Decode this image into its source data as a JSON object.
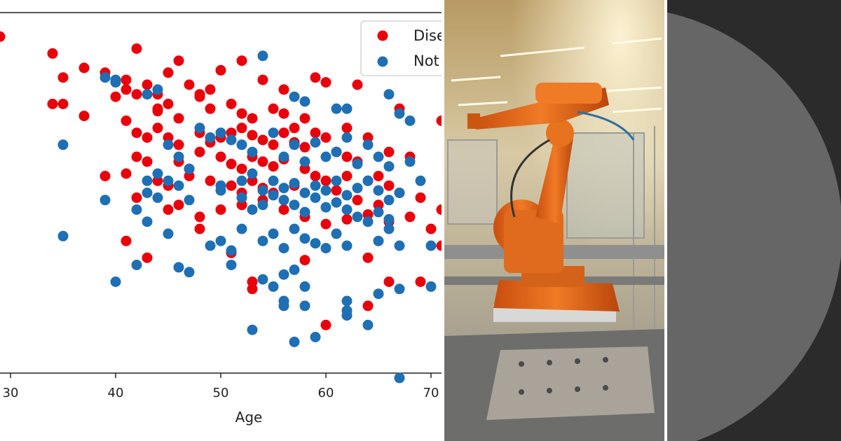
{
  "chart_data": {
    "type": "scatter",
    "xlabel": "Age",
    "ylabel": "",
    "xlim": [
      29,
      71
    ],
    "ylim": [
      60,
      210
    ],
    "x_ticks": [
      "30",
      "40",
      "50",
      "60",
      "70"
    ],
    "legend": {
      "placement": "top-right",
      "entries": [
        "Disease",
        "Not Disease"
      ]
    },
    "series": [
      {
        "name": "Disease",
        "color": "#e8000b",
        "points": [
          [
            29,
            200
          ],
          [
            34,
            193
          ],
          [
            42,
            195
          ],
          [
            35,
            183
          ],
          [
            37,
            187
          ],
          [
            39,
            185
          ],
          [
            41,
            182
          ],
          [
            43,
            180
          ],
          [
            44,
            176
          ],
          [
            45,
            185
          ],
          [
            46,
            190
          ],
          [
            48,
            175
          ],
          [
            50,
            186
          ],
          [
            52,
            190
          ],
          [
            54,
            182
          ],
          [
            56,
            178
          ],
          [
            59,
            183
          ],
          [
            60,
            181
          ],
          [
            63,
            180
          ],
          [
            67,
            170
          ],
          [
            71,
            165
          ],
          [
            34,
            172
          ],
          [
            35,
            172
          ],
          [
            37,
            167
          ],
          [
            40,
            175
          ],
          [
            41,
            178
          ],
          [
            42,
            176
          ],
          [
            44,
            169
          ],
          [
            45,
            172
          ],
          [
            47,
            180
          ],
          [
            48,
            176
          ],
          [
            49,
            170
          ],
          [
            51,
            172
          ],
          [
            52,
            168
          ],
          [
            53,
            166
          ],
          [
            55,
            170
          ],
          [
            56,
            168
          ],
          [
            58,
            166
          ],
          [
            59,
            160
          ],
          [
            62,
            162
          ],
          [
            64,
            158
          ],
          [
            66,
            152
          ],
          [
            68,
            150
          ],
          [
            41,
            165
          ],
          [
            42,
            160
          ],
          [
            43,
            158
          ],
          [
            44,
            162
          ],
          [
            45,
            158
          ],
          [
            46,
            155
          ],
          [
            48,
            160
          ],
          [
            49,
            156
          ],
          [
            50,
            158
          ],
          [
            51,
            160
          ],
          [
            52,
            162
          ],
          [
            53,
            159
          ],
          [
            54,
            157
          ],
          [
            55,
            155
          ],
          [
            56,
            160
          ],
          [
            57,
            156
          ],
          [
            58,
            154
          ],
          [
            60,
            158
          ],
          [
            61,
            152
          ],
          [
            62,
            150
          ],
          [
            63,
            148
          ],
          [
            42,
            150
          ],
          [
            43,
            148
          ],
          [
            46,
            148
          ],
          [
            47,
            145
          ],
          [
            48,
            152
          ],
          [
            50,
            150
          ],
          [
            51,
            147
          ],
          [
            52,
            145
          ],
          [
            53,
            150
          ],
          [
            54,
            148
          ],
          [
            55,
            146
          ],
          [
            56,
            149
          ],
          [
            58,
            145
          ],
          [
            59,
            142
          ],
          [
            60,
            140
          ],
          [
            62,
            142
          ],
          [
            64,
            140
          ],
          [
            65,
            142
          ],
          [
            66,
            138
          ],
          [
            39,
            142
          ],
          [
            41,
            143
          ],
          [
            44,
            140
          ],
          [
            45,
            138
          ],
          [
            47,
            142
          ],
          [
            49,
            140
          ],
          [
            51,
            138
          ],
          [
            52,
            135
          ],
          [
            53,
            140
          ],
          [
            54,
            137
          ],
          [
            55,
            135
          ],
          [
            57,
            138
          ],
          [
            61,
            136
          ],
          [
            63,
            132
          ],
          [
            65,
            130
          ],
          [
            67,
            135
          ],
          [
            69,
            133
          ],
          [
            71,
            128
          ],
          [
            42,
            133
          ],
          [
            45,
            128
          ],
          [
            46,
            130
          ],
          [
            48,
            125
          ],
          [
            50,
            128
          ],
          [
            52,
            130
          ],
          [
            54,
            132
          ],
          [
            56,
            128
          ],
          [
            58,
            125
          ],
          [
            60,
            122
          ],
          [
            62,
            124
          ],
          [
            64,
            126
          ],
          [
            66,
            123
          ],
          [
            68,
            125
          ],
          [
            70,
            120
          ],
          [
            41,
            115
          ],
          [
            43,
            108
          ],
          [
            48,
            120
          ],
          [
            51,
            110
          ],
          [
            53,
            98
          ],
          [
            53,
            95
          ],
          [
            58,
            107
          ],
          [
            64,
            108
          ],
          [
            66,
            98
          ],
          [
            69,
            98
          ],
          [
            71,
            113
          ],
          [
            60,
            80
          ],
          [
            64,
            88
          ],
          [
            44,
            170
          ],
          [
            46,
            166
          ],
          [
            49,
            178
          ],
          [
            57,
            162
          ]
        ]
      },
      {
        "name": "Not Disease",
        "color": "#1f6fb4",
        "points": [
          [
            54,
            192
          ],
          [
            39,
            183
          ],
          [
            40,
            181
          ],
          [
            44,
            178
          ],
          [
            57,
            175
          ],
          [
            58,
            173
          ],
          [
            61,
            170
          ],
          [
            62,
            170
          ],
          [
            66,
            176
          ],
          [
            67,
            168
          ],
          [
            68,
            165
          ],
          [
            35,
            155
          ],
          [
            40,
            182
          ],
          [
            43,
            176
          ],
          [
            45,
            155
          ],
          [
            46,
            150
          ],
          [
            48,
            162
          ],
          [
            49,
            158
          ],
          [
            50,
            160
          ],
          [
            51,
            157
          ],
          [
            52,
            155
          ],
          [
            53,
            152
          ],
          [
            55,
            160
          ],
          [
            56,
            150
          ],
          [
            57,
            155
          ],
          [
            58,
            148
          ],
          [
            59,
            156
          ],
          [
            60,
            150
          ],
          [
            61,
            152
          ],
          [
            62,
            158
          ],
          [
            63,
            147
          ],
          [
            64,
            155
          ],
          [
            65,
            150
          ],
          [
            66,
            146
          ],
          [
            68,
            148
          ],
          [
            43,
            140
          ],
          [
            44,
            143
          ],
          [
            45,
            140
          ],
          [
            46,
            138
          ],
          [
            47,
            145
          ],
          [
            50,
            138
          ],
          [
            52,
            140
          ],
          [
            53,
            143
          ],
          [
            54,
            136
          ],
          [
            55,
            140
          ],
          [
            56,
            137
          ],
          [
            57,
            139
          ],
          [
            58,
            135
          ],
          [
            59,
            138
          ],
          [
            60,
            136
          ],
          [
            61,
            140
          ],
          [
            62,
            134
          ],
          [
            63,
            137
          ],
          [
            64,
            140
          ],
          [
            65,
            136
          ],
          [
            66,
            132
          ],
          [
            67,
            135
          ],
          [
            69,
            140
          ],
          [
            39,
            132
          ],
          [
            42,
            128
          ],
          [
            43,
            135
          ],
          [
            44,
            133
          ],
          [
            47,
            132
          ],
          [
            50,
            136
          ],
          [
            52,
            133
          ],
          [
            53,
            128
          ],
          [
            54,
            130
          ],
          [
            55,
            134
          ],
          [
            56,
            132
          ],
          [
            57,
            130
          ],
          [
            58,
            127
          ],
          [
            59,
            133
          ],
          [
            60,
            129
          ],
          [
            61,
            131
          ],
          [
            62,
            128
          ],
          [
            63,
            125
          ],
          [
            64,
            123
          ],
          [
            65,
            127
          ],
          [
            66,
            124
          ],
          [
            35,
            117
          ],
          [
            43,
            123
          ],
          [
            45,
            118
          ],
          [
            49,
            113
          ],
          [
            50,
            115
          ],
          [
            51,
            111
          ],
          [
            52,
            120
          ],
          [
            54,
            115
          ],
          [
            55,
            118
          ],
          [
            56,
            112
          ],
          [
            57,
            120
          ],
          [
            58,
            116
          ],
          [
            59,
            114
          ],
          [
            60,
            112
          ],
          [
            61,
            118
          ],
          [
            62,
            113
          ],
          [
            65,
            115
          ],
          [
            66,
            120
          ],
          [
            67,
            113
          ],
          [
            70,
            113
          ],
          [
            40,
            98
          ],
          [
            42,
            105
          ],
          [
            46,
            104
          ],
          [
            47,
            102
          ],
          [
            51,
            105
          ],
          [
            54,
            99
          ],
          [
            55,
            96
          ],
          [
            56,
            101
          ],
          [
            57,
            103
          ],
          [
            58,
            96
          ],
          [
            62,
            90
          ],
          [
            62,
            86
          ],
          [
            64,
            80
          ],
          [
            62,
            84
          ],
          [
            56,
            90
          ],
          [
            56,
            88
          ],
          [
            58,
            88
          ],
          [
            53,
            78
          ],
          [
            57,
            73
          ],
          [
            59,
            75
          ],
          [
            67,
            58
          ],
          [
            65,
            93
          ],
          [
            67,
            95
          ],
          [
            70,
            96
          ]
        ]
      }
    ]
  }
}
